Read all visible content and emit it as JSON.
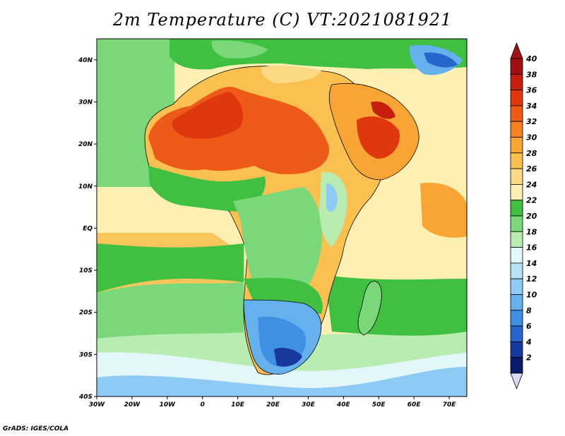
{
  "title": "2m Temperature (C) VT:2021081921",
  "credit": "GrADS: IGES/COLA",
  "map": {
    "lat_labels": [
      {
        "value": 40,
        "label": "40N"
      },
      {
        "value": 30,
        "label": "30N"
      },
      {
        "value": 20,
        "label": "20N"
      },
      {
        "value": 10,
        "label": "10N"
      },
      {
        "value": 0,
        "label": "EQ"
      },
      {
        "value": -10,
        "label": "10S"
      },
      {
        "value": -20,
        "label": "20S"
      },
      {
        "value": -30,
        "label": "30S"
      },
      {
        "value": -40,
        "label": "40S"
      }
    ],
    "lon_labels": [
      {
        "value": -30,
        "label": "30W"
      },
      {
        "value": -20,
        "label": "20W"
      },
      {
        "value": -10,
        "label": "10W"
      },
      {
        "value": 0,
        "label": "0"
      },
      {
        "value": 10,
        "label": "10E"
      },
      {
        "value": 20,
        "label": "20E"
      },
      {
        "value": 30,
        "label": "30E"
      },
      {
        "value": 40,
        "label": "40E"
      },
      {
        "value": 50,
        "label": "50E"
      },
      {
        "value": 60,
        "label": "60E"
      },
      {
        "value": 70,
        "label": "70E"
      }
    ],
    "lon_range": [
      -30,
      75
    ],
    "lat_range": [
      -40,
      45
    ]
  },
  "colorbar": {
    "levels": [
      {
        "value": "40",
        "color": "#a01010"
      },
      {
        "value": "38",
        "color": "#c81e0e"
      },
      {
        "value": "36",
        "color": "#e0380e"
      },
      {
        "value": "34",
        "color": "#ee5a18"
      },
      {
        "value": "32",
        "color": "#f5841f"
      },
      {
        "value": "30",
        "color": "#f8a535"
      },
      {
        "value": "28",
        "color": "#fac050"
      },
      {
        "value": "26",
        "color": "#fcd985"
      },
      {
        "value": "24",
        "color": "#fdf0b2"
      },
      {
        "value": "22",
        "color": "#40c040"
      },
      {
        "value": "20",
        "color": "#7ad87a"
      },
      {
        "value": "18",
        "color": "#b9ecb0"
      },
      {
        "value": "16",
        "color": "#e3f7fb"
      },
      {
        "value": "14",
        "color": "#b6e3f8"
      },
      {
        "value": "12",
        "color": "#8ecbf4"
      },
      {
        "value": "10",
        "color": "#64b1ee"
      },
      {
        "value": "8",
        "color": "#3f8fe2"
      },
      {
        "value": "6",
        "color": "#2666cc"
      },
      {
        "value": "4",
        "color": "#17389c"
      },
      {
        "value": "2",
        "color": "#0c1a6b"
      }
    ],
    "top_cap_color": "#a01010",
    "bottom_cap_color": "#ddd8f4"
  }
}
